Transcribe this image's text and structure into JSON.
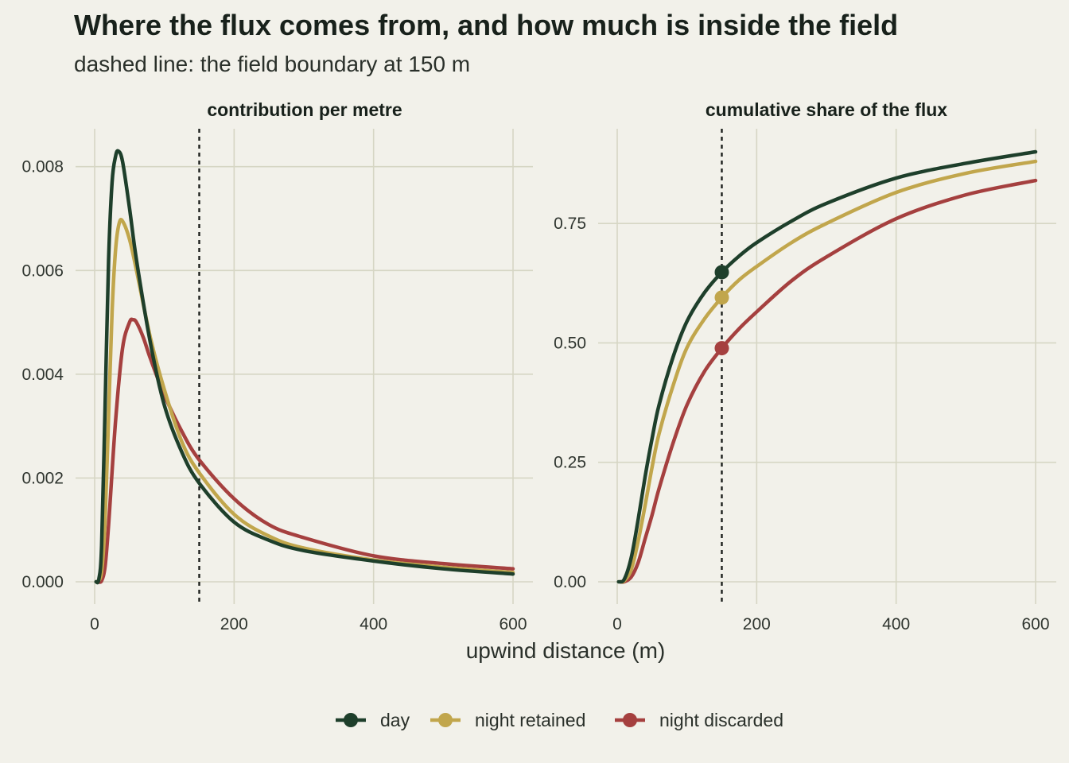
{
  "title": "Where the flux comes from, and how much is inside the field",
  "subtitle": "dashed line: the field boundary at 150 m",
  "x_axis_title": "upwind distance (m)",
  "colors": {
    "day": "#1e3f2b",
    "night_retained": "#c1a64c",
    "night_discarded": "#a5403f"
  },
  "legend": [
    {
      "name": "day",
      "color": "#1e3f2b"
    },
    {
      "name": "night retained",
      "color": "#c1a64c"
    },
    {
      "name": "night discarded",
      "color": "#a5403f"
    }
  ],
  "chart_data": [
    {
      "type": "line",
      "panel": "contribution per metre",
      "xlim": [
        0,
        600
      ],
      "ylim": [
        0,
        0.0087
      ],
      "x_ticks": [
        0,
        200,
        400,
        600
      ],
      "y_ticks": [
        0.0,
        0.002,
        0.004,
        0.006,
        0.008
      ],
      "y_tick_labels": [
        "0.000",
        "0.002",
        "0.004",
        "0.006",
        "0.008"
      ],
      "grid": true,
      "vline": 150,
      "series": [
        {
          "name": "day",
          "color": "#1e3f2b",
          "x": [
            2,
            6,
            10,
            15,
            20,
            25,
            30,
            34,
            40,
            50,
            60,
            80,
            100,
            125,
            150,
            200,
            250,
            300,
            400,
            500,
            600
          ],
          "y": [
            0.0,
            5e-05,
            0.0007,
            0.0034,
            0.0062,
            0.0077,
            0.0082,
            0.0083,
            0.0081,
            0.0072,
            0.0062,
            0.0046,
            0.0034,
            0.0025,
            0.0019,
            0.00115,
            0.0008,
            0.0006,
            0.0004,
            0.00025,
            0.00015
          ]
        },
        {
          "name": "night retained",
          "color": "#c1a64c",
          "x": [
            4,
            10,
            15,
            20,
            25,
            30,
            35,
            40,
            50,
            60,
            80,
            100,
            125,
            150,
            200,
            250,
            300,
            400,
            500,
            600
          ],
          "y": [
            0.0,
            0.0002,
            0.0012,
            0.0032,
            0.0052,
            0.0064,
            0.0069,
            0.00695,
            0.0066,
            0.006,
            0.0047,
            0.0037,
            0.0027,
            0.0021,
            0.0013,
            0.00088,
            0.00065,
            0.00042,
            0.00028,
            0.00018
          ]
        },
        {
          "name": "night discarded",
          "color": "#a5403f",
          "x": [
            5,
            10,
            15,
            20,
            30,
            40,
            50,
            55,
            60,
            70,
            80,
            100,
            125,
            150,
            200,
            250,
            300,
            400,
            500,
            600
          ],
          "y": [
            0.0,
            2e-05,
            0.0003,
            0.0011,
            0.0031,
            0.0045,
            0.005,
            0.00505,
            0.005,
            0.0047,
            0.0043,
            0.0036,
            0.0029,
            0.00235,
            0.0016,
            0.0011,
            0.00085,
            0.0005,
            0.00035,
            0.00025
          ]
        }
      ]
    },
    {
      "type": "line",
      "panel": "cumulative share of the flux",
      "xlim": [
        0,
        600
      ],
      "ylim": [
        0,
        0.92
      ],
      "x_ticks": [
        0,
        200,
        400,
        600
      ],
      "y_ticks": [
        0.0,
        0.25,
        0.5,
        0.75
      ],
      "y_tick_labels": [
        "0.00",
        "0.25",
        "0.50",
        "0.75"
      ],
      "grid": true,
      "vline": 150,
      "series": [
        {
          "name": "day",
          "color": "#1e3f2b",
          "x": [
            2,
            10,
            20,
            30,
            40,
            50,
            60,
            80,
            100,
            125,
            150,
            175,
            200,
            250,
            300,
            400,
            500,
            600
          ],
          "y": [
            0.0,
            0.005,
            0.05,
            0.13,
            0.22,
            0.3,
            0.37,
            0.47,
            0.545,
            0.605,
            0.648,
            0.682,
            0.71,
            0.755,
            0.792,
            0.845,
            0.876,
            0.9
          ],
          "marker_at_boundary": 0.648
        },
        {
          "name": "night retained",
          "color": "#c1a64c",
          "x": [
            4,
            10,
            20,
            30,
            40,
            50,
            60,
            80,
            100,
            125,
            150,
            175,
            200,
            250,
            300,
            400,
            500,
            600
          ],
          "y": [
            0.0,
            0.002,
            0.025,
            0.085,
            0.16,
            0.24,
            0.31,
            0.41,
            0.49,
            0.55,
            0.595,
            0.632,
            0.66,
            0.71,
            0.75,
            0.815,
            0.855,
            0.88
          ],
          "marker_at_boundary": 0.595
        },
        {
          "name": "night discarded",
          "color": "#a5403f",
          "x": [
            5,
            10,
            20,
            30,
            40,
            50,
            60,
            80,
            100,
            125,
            150,
            175,
            200,
            250,
            300,
            400,
            500,
            600
          ],
          "y": [
            0.0,
            0.0,
            0.01,
            0.04,
            0.09,
            0.14,
            0.195,
            0.29,
            0.37,
            0.44,
            0.489,
            0.53,
            0.565,
            0.63,
            0.68,
            0.76,
            0.81,
            0.84
          ],
          "marker_at_boundary": 0.489
        }
      ]
    }
  ]
}
